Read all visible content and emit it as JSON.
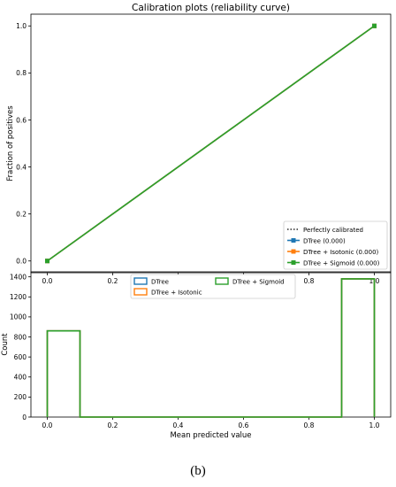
{
  "caption": "(b)",
  "chart_data": [
    {
      "type": "line",
      "title": "Calibration plots  (reliability curve)",
      "xlabel": "",
      "ylabel": "Fraction of positives",
      "xlim": [
        -0.05,
        1.05
      ],
      "ylim": [
        -0.05,
        1.05
      ],
      "xticks": [
        "0.0",
        "0.2",
        "0.4",
        "0.6",
        "0.8",
        "1.0"
      ],
      "yticks": [
        "0.0",
        "0.2",
        "0.4",
        "0.6",
        "0.8",
        "1.0"
      ],
      "grid": false,
      "legend_position": "lower-right",
      "series": [
        {
          "name": "Perfectly calibrated",
          "style": "dotted",
          "color": "#000000",
          "x": [
            0,
            1
          ],
          "y": [
            0,
            1
          ]
        },
        {
          "name": "DTree (0.000)",
          "marker": "square",
          "color": "#1f77b4",
          "x": [
            0,
            1
          ],
          "y": [
            0,
            1
          ]
        },
        {
          "name": "DTree + Isotonic (0.000)",
          "marker": "square",
          "color": "#ff7f0e",
          "x": [
            0,
            1
          ],
          "y": [
            0,
            1
          ]
        },
        {
          "name": "DTree + Sigmoid (0.000)",
          "marker": "square",
          "color": "#2ca02c",
          "x": [
            0,
            1
          ],
          "y": [
            0,
            1
          ]
        }
      ]
    },
    {
      "type": "histogram",
      "title": "",
      "xlabel": "Mean predicted value",
      "ylabel": "Count",
      "xlim": [
        -0.05,
        1.05
      ],
      "ylim": [
        0,
        1450
      ],
      "xticks": [
        "0.0",
        "0.2",
        "0.4",
        "0.6",
        "0.8",
        "1.0"
      ],
      "yticks": [
        "0",
        "200",
        "400",
        "600",
        "800",
        "1000",
        "1200",
        "1400"
      ],
      "bin_edges": [
        0,
        0.1,
        0.2,
        0.3,
        0.4,
        0.5,
        0.6,
        0.7,
        0.8,
        0.9,
        1.0
      ],
      "grid": false,
      "legend_position": "upper-center",
      "series": [
        {
          "name": "DTree",
          "color": "#1f77b4",
          "counts": [
            860,
            0,
            0,
            0,
            0,
            0,
            0,
            0,
            0,
            1380
          ]
        },
        {
          "name": "DTree + Isotonic",
          "color": "#ff7f0e",
          "counts": [
            860,
            0,
            0,
            0,
            0,
            0,
            0,
            0,
            0,
            1380
          ]
        },
        {
          "name": "DTree + Sigmoid",
          "color": "#2ca02c",
          "counts": [
            860,
            0,
            0,
            0,
            0,
            0,
            0,
            0,
            0,
            1380
          ]
        }
      ]
    }
  ]
}
